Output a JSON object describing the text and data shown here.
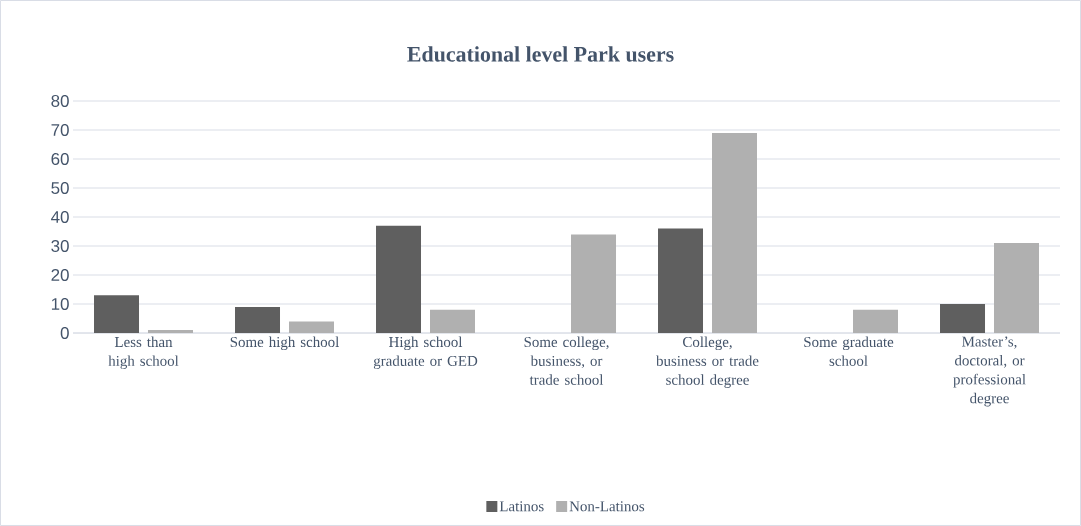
{
  "chart_data": {
    "type": "bar",
    "title": "Educational level Park users",
    "categories": [
      "Less than high school",
      "Some high school",
      "High school graduate or GED",
      "Some college, business, or trade school",
      "College, business or trade school degree",
      "Some graduate school",
      "Master’s, doctoral, or professional degree"
    ],
    "series": [
      {
        "name": "Latinos",
        "color": "#5f5f5f",
        "values": [
          13,
          9,
          37,
          0,
          36,
          0,
          10
        ]
      },
      {
        "name": "Non-Latinos",
        "color": "#b0b0b0",
        "values": [
          1,
          4,
          8,
          34,
          69,
          8,
          31
        ]
      }
    ],
    "ylim": [
      0,
      80
    ],
    "yticks": [
      0,
      10,
      20,
      30,
      40,
      50,
      60,
      70,
      80
    ],
    "grid": "y",
    "legend": "bottom"
  }
}
